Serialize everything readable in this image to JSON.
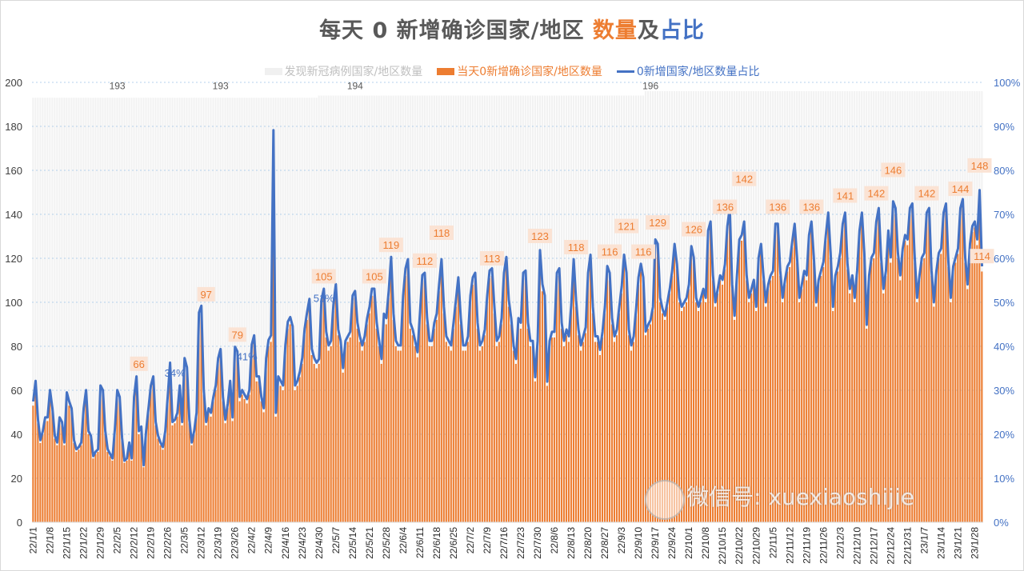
{
  "title": {
    "part1": "每天 0 新增确诊国家/地区 ",
    "part2": "数量",
    "part3": "及",
    "part4": "占比"
  },
  "colors": {
    "total": "#f2f2f2",
    "orange": "#ed7d31",
    "blue": "#4472c4",
    "label_bg": "#fbe3d4",
    "grid": "#9dc3e6",
    "text": "#595959"
  },
  "watermark": "微信号: xuexiaoshijie",
  "chart_data": {
    "type": "bar+line",
    "start_date": "2022-01-01",
    "legend_position": "top",
    "grid": true,
    "series": [
      {
        "name": "发现新冠病例国家/地区数量",
        "type": "bar",
        "axis": "left",
        "segments": [
          {
            "from": "22/1/1",
            "value": 193
          },
          {
            "from": "22/4/30",
            "value": 194
          },
          {
            "from": "22/9/13",
            "value": 196
          }
        ]
      },
      {
        "name": "当天0新增确诊国家/地区数量",
        "type": "bar",
        "axis": "left",
        "values": [
          53,
          62,
          45,
          36,
          40,
          46,
          46,
          58,
          50,
          38,
          35,
          46,
          44,
          35,
          57,
          53,
          50,
          36,
          32,
          33,
          35,
          50,
          58,
          40,
          38,
          29,
          31,
          32,
          60,
          58,
          40,
          32,
          30,
          28,
          41,
          58,
          55,
          37,
          27,
          28,
          35,
          28,
          55,
          64,
          40,
          42,
          25,
          40,
          50,
          60,
          64,
          44,
          38,
          35,
          33,
          40,
          55,
          70,
          44,
          45,
          48,
          60,
          44,
          72,
          68,
          45,
          35,
          40,
          48,
          92,
          95,
          58,
          44,
          50,
          48,
          55,
          60,
          72,
          76,
          55,
          45,
          52,
          62,
          46,
          77,
          75,
          55,
          58,
          56,
          54,
          58,
          78,
          82,
          64,
          64,
          55,
          50,
          72,
          80,
          82,
          172,
          48,
          64,
          62,
          60,
          78,
          88,
          90,
          86,
          60,
          62,
          66,
          72,
          85,
          92,
          98,
          76,
          72,
          70,
          72,
          98,
          103,
          84,
          78,
          80,
          96,
          105,
          85,
          80,
          68,
          80,
          82,
          84,
          100,
          102,
          88,
          82,
          78,
          82,
          90,
          95,
          103,
          103,
          88,
          80,
          72,
          92,
          90,
          102,
          117,
          92,
          80,
          78,
          78,
          100,
          112,
          116,
          88,
          85,
          80,
          75,
          92,
          109,
          110,
          90,
          80,
          80,
          88,
          92,
          105,
          116,
          95,
          82,
          80,
          78,
          88,
          98,
          108,
          90,
          78,
          78,
          82,
          100,
          108,
          110,
          88,
          78,
          80,
          85,
          100,
          111,
          112,
          95,
          80,
          82,
          90,
          110,
          117,
          98,
          90,
          78,
          72,
          90,
          88,
          110,
          111,
          88,
          80,
          80,
          64,
          80,
          120,
          105,
          100,
          62,
          80,
          84,
          84,
          110,
          112,
          88,
          80,
          85,
          82,
          96,
          116,
          98,
          85,
          78,
          82,
          86,
          110,
          118,
          95,
          82,
          82,
          76,
          84,
          95,
          113,
          110,
          90,
          82,
          85,
          95,
          104,
          118,
          110,
          85,
          78,
          82,
          94,
          108,
          114,
          108,
          85,
          88,
          90,
          96,
          126,
          124,
          100,
          95,
          92,
          98,
          104,
          112,
          124,
          115,
          100,
          96,
          98,
          100,
          106,
          123,
          118,
          100,
          96,
          100,
          104,
          100,
          130,
          134,
          110,
          98,
          104,
          110,
          108,
          115,
          132,
          140,
          106,
          92,
          110,
          126,
          128,
          134,
          110,
          100,
          104,
          108,
          96,
          118,
          124,
          110,
          98,
          106,
          110,
          112,
          133,
          133,
          112,
          100,
          108,
          114,
          116,
          125,
          133,
          118,
          100,
          106,
          112,
          110,
          128,
          134,
          118,
          98,
          108,
          112,
          116,
          128,
          138,
          120,
          96,
          110,
          114,
          120,
          133,
          138,
          115,
          104,
          110,
          100,
          112,
          130,
          138,
          120,
          88,
          110,
          118,
          120,
          134,
          140,
          118,
          104,
          112,
          130,
          118,
          143,
          140,
          120,
          110,
          122,
          128,
          126,
          140,
          142,
          118,
          100,
          110,
          118,
          120,
          138,
          140,
          112,
          98,
          112,
          120,
          122,
          138,
          142,
          116,
          100,
          114,
          118,
          122,
          140,
          144,
          118,
          106,
          124,
          132,
          134,
          126,
          148,
          114
        ]
      },
      {
        "name": "0新增国家/地区数量占比",
        "type": "line",
        "axis": "right",
        "formula": "当天0新增确诊国家/地区数量 / 发现新冠病例国家/地区数量"
      }
    ],
    "y_left": {
      "min": 0,
      "max": 200,
      "ticks": [
        "0",
        "20",
        "40",
        "60",
        "80",
        "100",
        "120",
        "140",
        "160",
        "180",
        "200"
      ]
    },
    "y_right": {
      "min": 0,
      "max": 1,
      "ticks": [
        "0%",
        "10%",
        "20%",
        "30%",
        "40%",
        "50%",
        "60%",
        "70%",
        "80%",
        "90%",
        "100%"
      ]
    },
    "x_ticks": [
      "22/1/1",
      "22/1/8",
      "22/1/15",
      "22/1/22",
      "22/1/29",
      "22/2/5",
      "22/2/12",
      "22/2/19",
      "22/2/26",
      "22/3/5",
      "22/3/12",
      "22/3/19",
      "22/3/26",
      "22/4/2",
      "22/4/9",
      "22/4/16",
      "22/4/23",
      "22/4/30",
      "22/5/7",
      "22/5/14",
      "22/5/21",
      "22/5/28",
      "22/6/4",
      "22/6/11",
      "22/6/18",
      "22/6/25",
      "22/7/2",
      "22/7/9",
      "22/7/16",
      "22/7/23",
      "22/7/30",
      "22/8/6",
      "22/8/13",
      "22/8/20",
      "22/8/27",
      "22/9/3",
      "22/9/10",
      "22/9/17",
      "22/9/24",
      "22/10/1",
      "22/10/8",
      "22/10/15",
      "22/10/22",
      "22/10/29",
      "22/11/5",
      "22/11/12",
      "22/11/19",
      "22/11/26",
      "22/12/3",
      "22/12/10",
      "22/12/17",
      "22/12/24",
      "22/12/31",
      "23/1/7",
      "23/1/14",
      "23/1/21",
      "23/1/28"
    ],
    "total_labels": [
      {
        "date": "22/2/5",
        "text": "193"
      },
      {
        "date": "22/3/20",
        "text": "193"
      },
      {
        "date": "22/5/15",
        "text": "194"
      },
      {
        "date": "22/9/15",
        "text": "196"
      }
    ],
    "orange_labels": [
      {
        "date": "22/2/14",
        "text": "66"
      },
      {
        "date": "22/3/14",
        "text": "97"
      },
      {
        "date": "22/3/27",
        "text": "79"
      },
      {
        "date": "22/5/2",
        "text": "105"
      },
      {
        "date": "22/5/23",
        "text": "105"
      },
      {
        "date": "22/5/30",
        "text": "119"
      },
      {
        "date": "22/6/13",
        "text": "112"
      },
      {
        "date": "22/6/20",
        "text": "118"
      },
      {
        "date": "22/7/11",
        "text": "113"
      },
      {
        "date": "22/7/31",
        "text": "123"
      },
      {
        "date": "22/8/15",
        "text": "118"
      },
      {
        "date": "22/8/29",
        "text": "116"
      },
      {
        "date": "22/9/5",
        "text": "121"
      },
      {
        "date": "22/9/12",
        "text": "116"
      },
      {
        "date": "22/9/18",
        "text": "129"
      },
      {
        "date": "22/10/3",
        "text": "126"
      },
      {
        "date": "22/10/16",
        "text": "136"
      },
      {
        "date": "22/10/24",
        "text": "142"
      },
      {
        "date": "22/11/7",
        "text": "136"
      },
      {
        "date": "22/11/21",
        "text": "136"
      },
      {
        "date": "22/12/5",
        "text": "141"
      },
      {
        "date": "22/12/18",
        "text": "142"
      },
      {
        "date": "22/12/25",
        "text": "146"
      },
      {
        "date": "23/1/8",
        "text": "142"
      },
      {
        "date": "23/1/22",
        "text": "144"
      },
      {
        "date": "23/1/30",
        "text": "148"
      },
      {
        "date": "23/1/31",
        "text": "114"
      }
    ],
    "share_labels": [
      {
        "date": "22/3/1",
        "text": "34%"
      },
      {
        "date": "22/3/31",
        "text": "41%"
      },
      {
        "date": "22/5/2",
        "text": "51%"
      }
    ]
  }
}
